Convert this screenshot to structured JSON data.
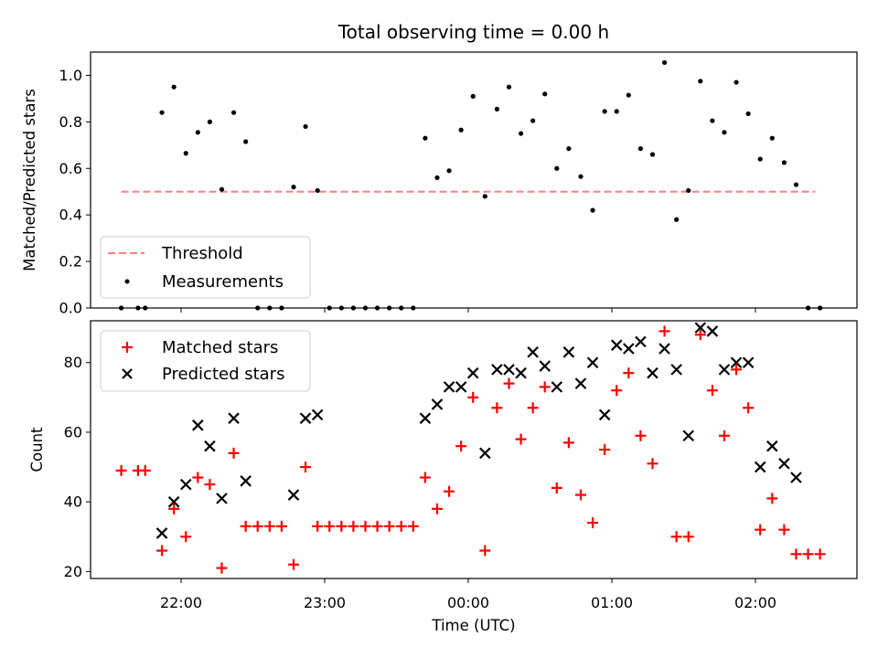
{
  "title": "Total observing time = 0.00 h",
  "colors": {
    "threshold": "#ff7f7f",
    "measurement": "#000000",
    "matched": "#ff0000",
    "predicted": "#000000"
  },
  "chart_data": [
    {
      "type": "scatter",
      "panel": "top",
      "ylabel": "Matched/Predicted stars",
      "ylim": [
        0,
        1.1
      ],
      "yticks": [
        "0.0",
        "0.2",
        "0.4",
        "0.6",
        "0.8",
        "1.0"
      ],
      "legend": {
        "position": "lower-left",
        "entries": [
          "Threshold",
          "Measurements"
        ]
      },
      "threshold": {
        "name": "Threshold",
        "value": 0.5,
        "x_range": [
          "21:35",
          "02:25"
        ]
      },
      "series": [
        {
          "name": "Measurements",
          "marker": "dot",
          "x": [
            "21:35",
            "21:42",
            "21:45",
            "21:52",
            "21:57",
            "22:02",
            "22:07",
            "22:12",
            "22:17",
            "22:22",
            "22:27",
            "22:32",
            "22:37",
            "22:42",
            "22:47",
            "22:52",
            "22:57",
            "23:02",
            "23:07",
            "23:12",
            "23:17",
            "23:22",
            "23:27",
            "23:32",
            "23:37",
            "23:42",
            "23:47",
            "23:52",
            "23:57",
            "00:02",
            "00:07",
            "00:12",
            "00:17",
            "00:22",
            "00:27",
            "00:32",
            "00:37",
            "00:42",
            "00:47",
            "00:52",
            "00:57",
            "01:02",
            "01:07",
            "01:12",
            "01:17",
            "01:22",
            "01:27",
            "01:32",
            "01:37",
            "01:42",
            "01:47",
            "01:52",
            "01:57",
            "02:02",
            "02:07",
            "02:12",
            "02:17",
            "02:22",
            "02:27"
          ],
          "y": [
            0,
            0,
            0,
            0.84,
            0.95,
            0.665,
            0.755,
            0.8,
            0.51,
            0.84,
            0.715,
            0,
            0,
            0,
            0.52,
            0.78,
            0.505,
            0,
            0,
            0,
            0,
            0,
            0,
            0,
            0,
            0.73,
            0.56,
            0.59,
            0.765,
            0.91,
            0.48,
            0.855,
            0.95,
            0.75,
            0.805,
            0.92,
            0.6,
            0.685,
            0.565,
            0.42,
            0.845,
            0.845,
            0.915,
            0.685,
            0.66,
            1.055,
            0.38,
            0.505,
            0.975,
            0.805,
            0.755,
            0.97,
            0.835,
            0.64,
            0.73,
            0.625,
            0.53,
            0,
            0
          ]
        }
      ]
    },
    {
      "type": "scatter",
      "panel": "bottom",
      "xlabel": "Time (UTC)",
      "ylabel": "Count",
      "ylim": [
        18,
        92
      ],
      "yticks": [
        "20",
        "40",
        "60",
        "80"
      ],
      "xticks": [
        "22:00",
        "23:00",
        "00:00",
        "01:00",
        "02:00"
      ],
      "legend": {
        "position": "upper-left",
        "entries": [
          "Matched stars",
          "Predicted stars"
        ]
      },
      "series": [
        {
          "name": "Matched stars",
          "marker": "plus",
          "x": [
            "21:35",
            "21:42",
            "21:45",
            "21:52",
            "21:57",
            "22:02",
            "22:07",
            "22:12",
            "22:17",
            "22:22",
            "22:27",
            "22:32",
            "22:37",
            "22:42",
            "22:47",
            "22:52",
            "22:57",
            "23:02",
            "23:07",
            "23:12",
            "23:17",
            "23:22",
            "23:27",
            "23:32",
            "23:37",
            "23:42",
            "23:47",
            "23:52",
            "23:57",
            "00:02",
            "00:07",
            "00:12",
            "00:17",
            "00:22",
            "00:27",
            "00:32",
            "00:37",
            "00:42",
            "00:47",
            "00:52",
            "00:57",
            "01:02",
            "01:07",
            "01:12",
            "01:17",
            "01:22",
            "01:27",
            "01:32",
            "01:37",
            "01:42",
            "01:47",
            "01:52",
            "01:57",
            "02:02",
            "02:07",
            "02:12",
            "02:17",
            "02:22",
            "02:27"
          ],
          "y": [
            49,
            49,
            49,
            26,
            38,
            30,
            47,
            45,
            21,
            54,
            33,
            33,
            33,
            33,
            22,
            50,
            33,
            33,
            33,
            33,
            33,
            33,
            33,
            33,
            33,
            47,
            38,
            43,
            56,
            70,
            26,
            67,
            74,
            58,
            67,
            73,
            44,
            57,
            42,
            34,
            55,
            72,
            77,
            59,
            51,
            89,
            30,
            30,
            88,
            72,
            59,
            78,
            67,
            32,
            41,
            32,
            25,
            25,
            25
          ]
        },
        {
          "name": "Predicted stars",
          "marker": "cross",
          "x": [
            "21:52",
            "21:57",
            "22:02",
            "22:07",
            "22:12",
            "22:17",
            "22:22",
            "22:27",
            "22:47",
            "22:52",
            "22:57",
            "23:42",
            "23:47",
            "23:52",
            "23:57",
            "00:02",
            "00:07",
            "00:12",
            "00:17",
            "00:22",
            "00:27",
            "00:32",
            "00:37",
            "00:42",
            "00:47",
            "00:52",
            "00:57",
            "01:02",
            "01:07",
            "01:12",
            "01:17",
            "01:22",
            "01:27",
            "01:32",
            "01:37",
            "01:42",
            "01:47",
            "01:52",
            "01:57",
            "02:02",
            "02:07",
            "02:12",
            "02:17"
          ],
          "y": [
            31,
            40,
            45,
            62,
            56,
            41,
            64,
            46,
            42,
            64,
            65,
            64,
            68,
            73,
            73,
            77,
            54,
            78,
            78,
            77,
            83,
            79,
            73,
            83,
            74,
            80,
            65,
            85,
            84,
            86,
            77,
            84,
            78,
            59,
            90,
            89,
            78,
            80,
            80,
            50,
            56,
            51,
            47
          ]
        }
      ]
    }
  ]
}
